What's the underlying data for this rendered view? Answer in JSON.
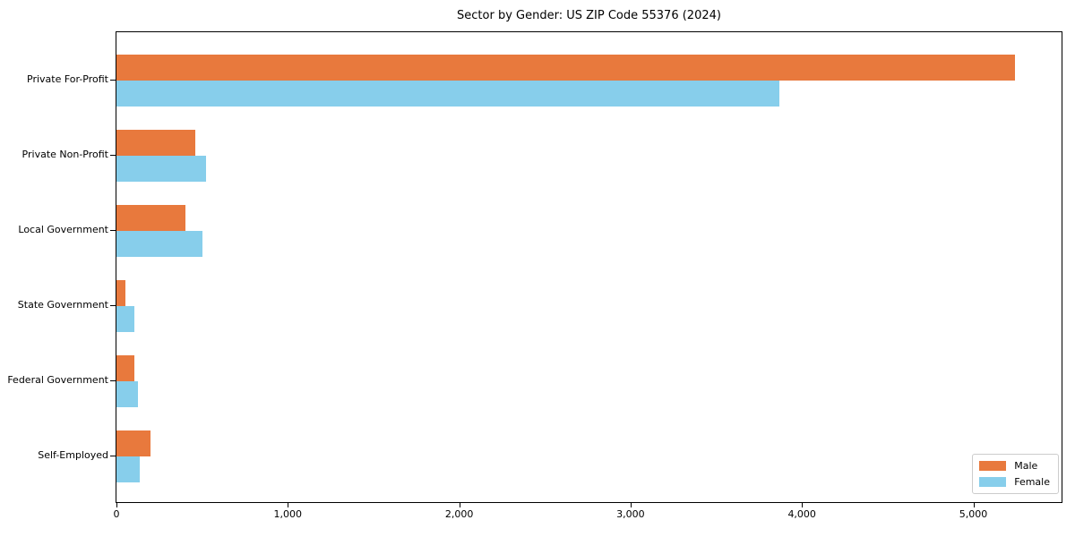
{
  "chart_data": {
    "type": "bar",
    "orientation": "horizontal",
    "title": "Sector by Gender: US ZIP Code 55376 (2024)",
    "categories": [
      "Private For-Profit",
      "Private Non-Profit",
      "Local Government",
      "State Government",
      "Federal Government",
      "Self-Employed"
    ],
    "series": [
      {
        "name": "Male",
        "color": "#E8793D",
        "values": [
          5245,
          460,
          400,
          50,
          105,
          200
        ]
      },
      {
        "name": "Female",
        "color": "#87CEEB",
        "values": [
          3870,
          520,
          500,
          105,
          125,
          135
        ]
      }
    ],
    "xlabel": "",
    "ylabel": "",
    "xlim": [
      0,
      5515
    ],
    "xticks": [
      0,
      1000,
      2000,
      3000,
      4000,
      5000
    ],
    "xtick_labels": [
      "0",
      "1,000",
      "2,000",
      "3,000",
      "4,000",
      "5,000"
    ],
    "grid": false,
    "plot_background": "#ffffff",
    "legend": {
      "position": "lower-right",
      "entries": [
        "Male",
        "Female"
      ]
    }
  }
}
